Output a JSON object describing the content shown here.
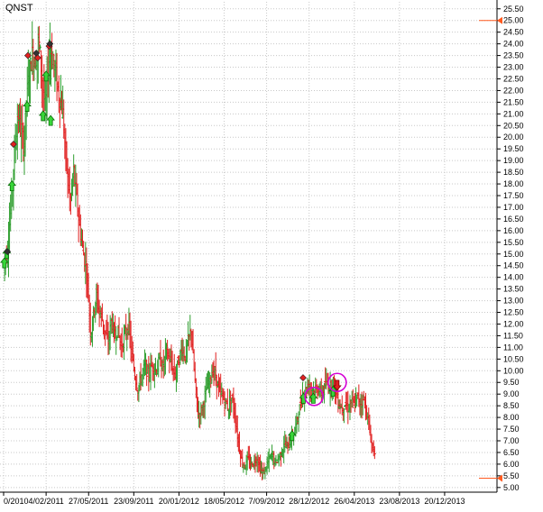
{
  "ticker": "QNST",
  "colors": {
    "up": "#2f9e2f",
    "down": "#e02020",
    "grid": "#c8c8c8",
    "marker": "#ff5a1f",
    "circle": "#d400d4",
    "arrow_up_fill": "#39d639",
    "arrow_up_stroke": "#0a6e0a",
    "diamond_red": "#e02020",
    "diamond_dark": "#333333"
  },
  "chart_data": {
    "type": "bar",
    "subtype": "ohlc",
    "ylim": [
      4.8,
      25.8
    ],
    "xlim": [
      0,
      1300
    ],
    "grid": "dotted, both axes",
    "yaxis_position": "right",
    "yticks": [
      "5.00",
      "5.50",
      "6.00",
      "6.50",
      "7.00",
      "7.50",
      "8.00",
      "8.50",
      "9.00",
      "9.50",
      "10.00",
      "10.50",
      "11.00",
      "11.50",
      "12.00",
      "12.50",
      "13.00",
      "13.50",
      "14.00",
      "14.50",
      "15.00",
      "15.50",
      "16.00",
      "16.50",
      "17.00",
      "17.50",
      "18.00",
      "18.50",
      "19.00",
      "19.50",
      "20.00",
      "20.50",
      "21.00",
      "21.50",
      "22.00",
      "22.50",
      "23.00",
      "23.50",
      "24.00",
      "24.50",
      "25.00",
      "25.50"
    ],
    "xticks": [
      {
        "label": "0/2010",
        "t": 0
      },
      {
        "label": "4/02/2011",
        "t": 112
      },
      {
        "label": "27/05/2011",
        "t": 224
      },
      {
        "label": "23/09/2011",
        "t": 343
      },
      {
        "label": "20/01/2012",
        "t": 462
      },
      {
        "label": "18/05/2012",
        "t": 581
      },
      {
        "label": "7/09/2012",
        "t": 693
      },
      {
        "label": "28/12/2012",
        "t": 805
      },
      {
        "label": "26/04/2013",
        "t": 924
      },
      {
        "label": "23/08/2013",
        "t": 1043
      },
      {
        "label": "20/12/2013",
        "t": 1162
      }
    ],
    "ohlc_path": [
      [
        0,
        14.6
      ],
      [
        10,
        15.2
      ],
      [
        18,
        16.8
      ],
      [
        24,
        18.2
      ],
      [
        30,
        19.6
      ],
      [
        38,
        21.0
      ],
      [
        46,
        20.2
      ],
      [
        54,
        19.6
      ],
      [
        60,
        21.6
      ],
      [
        68,
        22.8
      ],
      [
        76,
        23.6
      ],
      [
        82,
        23.2
      ],
      [
        88,
        23.6
      ],
      [
        92,
        24.2
      ],
      [
        98,
        23.2
      ],
      [
        104,
        22.0
      ],
      [
        110,
        21.2
      ],
      [
        116,
        22.6
      ],
      [
        122,
        23.8
      ],
      [
        128,
        23.4
      ],
      [
        136,
        22.8
      ],
      [
        144,
        22.0
      ],
      [
        150,
        21.6
      ],
      [
        156,
        21.0
      ],
      [
        162,
        19.6
      ],
      [
        168,
        18.4
      ],
      [
        176,
        17.2
      ],
      [
        184,
        18.6
      ],
      [
        192,
        17.4
      ],
      [
        200,
        16.2
      ],
      [
        210,
        15.0
      ],
      [
        218,
        14.4
      ],
      [
        224,
        13.0
      ],
      [
        230,
        11.5
      ],
      [
        236,
        12.4
      ],
      [
        244,
        13.2
      ],
      [
        252,
        12.6
      ],
      [
        260,
        12.2
      ],
      [
        268,
        11.6
      ],
      [
        276,
        11.2
      ],
      [
        284,
        12.2
      ],
      [
        292,
        11.4
      ],
      [
        300,
        11.8
      ],
      [
        310,
        11.0
      ],
      [
        320,
        11.6
      ],
      [
        330,
        11.9
      ],
      [
        338,
        10.6
      ],
      [
        346,
        9.8
      ],
      [
        354,
        9.2
      ],
      [
        362,
        9.7
      ],
      [
        372,
        10.2
      ],
      [
        382,
        9.8
      ],
      [
        392,
        10.3
      ],
      [
        402,
        10.0
      ],
      [
        412,
        10.5
      ],
      [
        420,
        10.1
      ],
      [
        428,
        10.9
      ],
      [
        436,
        10.5
      ],
      [
        444,
        10.2
      ],
      [
        452,
        9.8
      ],
      [
        460,
        10.4
      ],
      [
        470,
        11.0
      ],
      [
        478,
        10.6
      ],
      [
        486,
        11.2
      ],
      [
        494,
        11.8
      ],
      [
        500,
        10.4
      ],
      [
        506,
        9.2
      ],
      [
        512,
        8.1
      ],
      [
        520,
        8.3
      ],
      [
        528,
        8.7
      ],
      [
        536,
        9.3
      ],
      [
        544,
        9.6
      ],
      [
        552,
        10.1
      ],
      [
        560,
        9.7
      ],
      [
        568,
        9.1
      ],
      [
        576,
        8.9
      ],
      [
        584,
        8.7
      ],
      [
        592,
        8.4
      ],
      [
        600,
        8.9
      ],
      [
        608,
        8.3
      ],
      [
        614,
        7.5
      ],
      [
        620,
        6.8
      ],
      [
        628,
        6.1
      ],
      [
        636,
        5.9
      ],
      [
        644,
        6.2
      ],
      [
        652,
        6.0
      ],
      [
        660,
        6.1
      ],
      [
        668,
        6.3
      ],
      [
        676,
        5.8
      ],
      [
        684,
        5.6
      ],
      [
        692,
        5.9
      ],
      [
        700,
        6.2
      ],
      [
        708,
        6.4
      ],
      [
        716,
        6.0
      ],
      [
        724,
        6.3
      ],
      [
        732,
        6.5
      ],
      [
        740,
        6.9
      ],
      [
        748,
        6.7
      ],
      [
        756,
        7.0
      ],
      [
        764,
        7.3
      ],
      [
        772,
        7.8
      ],
      [
        780,
        8.4
      ],
      [
        788,
        9.0
      ],
      [
        796,
        9.2
      ],
      [
        804,
        9.4
      ],
      [
        812,
        9.3
      ],
      [
        820,
        9.1
      ],
      [
        828,
        9.3
      ],
      [
        836,
        9.0
      ],
      [
        844,
        9.2
      ],
      [
        852,
        9.5
      ],
      [
        860,
        9.3
      ],
      [
        868,
        9.6
      ],
      [
        876,
        9.0
      ],
      [
        884,
        8.6
      ],
      [
        892,
        8.4
      ],
      [
        900,
        8.6
      ],
      [
        908,
        8.4
      ],
      [
        916,
        8.7
      ],
      [
        924,
        8.5
      ],
      [
        932,
        8.9
      ],
      [
        940,
        8.6
      ],
      [
        948,
        8.8
      ],
      [
        956,
        8.3
      ],
      [
        964,
        7.4
      ],
      [
        972,
        6.7
      ],
      [
        978,
        6.6
      ]
    ],
    "signals": [
      {
        "kind": "arrow_up",
        "t": 2,
        "price": 14.6
      },
      {
        "kind": "arrow_up",
        "t": 8,
        "price": 15.0
      },
      {
        "kind": "diamond_dark",
        "t": 10,
        "price": 15.1
      },
      {
        "kind": "arrow_up",
        "t": 22,
        "price": 17.9
      },
      {
        "kind": "diamond_red",
        "t": 26,
        "price": 19.7
      },
      {
        "kind": "arrow_up",
        "t": 62,
        "price": 21.3
      },
      {
        "kind": "diamond_red",
        "t": 64,
        "price": 23.5
      },
      {
        "kind": "diamond_dark",
        "t": 86,
        "price": 23.6
      },
      {
        "kind": "diamond_red",
        "t": 90,
        "price": 23.4
      },
      {
        "kind": "arrow_up",
        "t": 104,
        "price": 20.9
      },
      {
        "kind": "arrow_up",
        "t": 112,
        "price": 22.6
      },
      {
        "kind": "diamond_red",
        "t": 120,
        "price": 23.9
      },
      {
        "kind": "diamond_dark",
        "t": 122,
        "price": 24.0
      },
      {
        "kind": "arrow_up",
        "t": 124,
        "price": 20.7
      },
      {
        "kind": "diamond_red",
        "t": 789,
        "price": 9.7
      },
      {
        "kind": "arrow_up",
        "t": 790,
        "price": 8.8
      },
      {
        "kind": "arrow_up",
        "t": 816,
        "price": 8.8
      },
      {
        "kind": "arrow_up",
        "t": 868,
        "price": 9.1
      },
      {
        "kind": "arrow_down",
        "t": 879,
        "price": 9.4
      },
      {
        "kind": "arrow_up",
        "t": 760,
        "price": 7.2
      }
    ],
    "circles": [
      {
        "t": 818,
        "price": 8.9
      },
      {
        "t": 879,
        "price": 9.5
      }
    ],
    "price_markers": [
      25.0,
      5.4
    ]
  }
}
